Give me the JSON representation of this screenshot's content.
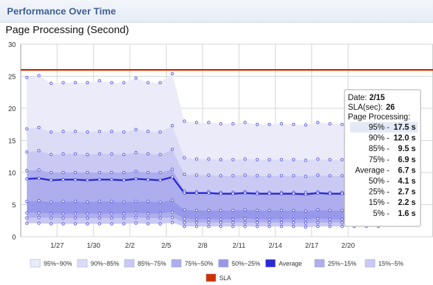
{
  "panel": {
    "title": "Performance Over Time"
  },
  "chart_data": {
    "type": "area",
    "title": "Page Processing (Second)",
    "xlabel": "",
    "ylabel": "",
    "ylim": [
      0,
      30
    ],
    "yticks": [
      0,
      5,
      10,
      15,
      20,
      25,
      30
    ],
    "xlim": [
      0,
      34
    ],
    "xticks": [
      {
        "x": 3,
        "label": "1/27"
      },
      {
        "x": 6,
        "label": "1/30"
      },
      {
        "x": 9,
        "label": "2/2"
      },
      {
        "x": 12,
        "label": "2/5"
      },
      {
        "x": 15,
        "label": "2/8"
      },
      {
        "x": 18,
        "label": "2/11"
      },
      {
        "x": 21,
        "label": "2/14"
      },
      {
        "x": 24,
        "label": "2/17"
      },
      {
        "x": 27,
        "label": "2/20"
      }
    ],
    "grid": true,
    "sla": {
      "name": "SLA",
      "value": 26,
      "color": "#cc3300"
    },
    "x": [
      0.5,
      1.5,
      2.5,
      3.5,
      4.5,
      5.5,
      6.5,
      7.5,
      8.5,
      9.5,
      10.5,
      11.5,
      12.5,
      13.5,
      14.5,
      15.5,
      16.5,
      17.5,
      18.5,
      19.5,
      20.5,
      21.5,
      22.5,
      23.5,
      24.5,
      25.5,
      26.5,
      27.5,
      28.5,
      29.5
    ],
    "series": [
      {
        "name": "95%",
        "values": [
          24.8,
          25.1,
          23.9,
          24.0,
          24.0,
          24.0,
          24.3,
          24.0,
          24.0,
          24.7,
          24.0,
          24.0,
          25.4,
          18.0,
          17.8,
          17.8,
          17.6,
          17.6,
          17.8,
          17.5,
          17.5,
          17.6,
          17.5,
          17.4,
          17.8,
          17.6,
          17.5,
          17.7,
          17.6,
          17.8
        ]
      },
      {
        "name": "90%",
        "values": [
          16.8,
          17.0,
          16.3,
          16.4,
          16.4,
          16.3,
          16.4,
          16.4,
          16.3,
          16.7,
          16.4,
          16.3,
          17.3,
          12.3,
          12.1,
          12.1,
          12.0,
          12.0,
          12.1,
          12.0,
          12.0,
          12.0,
          12.0,
          11.9,
          12.1,
          12.0,
          12.0,
          12.0,
          12.0,
          12.1
        ]
      },
      {
        "name": "85%",
        "values": [
          13.2,
          13.4,
          12.8,
          12.9,
          12.9,
          12.8,
          12.9,
          12.9,
          12.8,
          13.1,
          12.9,
          12.8,
          13.6,
          9.7,
          9.6,
          9.6,
          9.5,
          9.5,
          9.6,
          9.5,
          9.5,
          9.5,
          9.5,
          9.4,
          9.6,
          9.5,
          9.5,
          9.5,
          9.5,
          9.6
        ]
      },
      {
        "name": "75%",
        "values": [
          10.3,
          10.4,
          10.0,
          10.0,
          10.0,
          10.0,
          10.0,
          10.0,
          10.0,
          10.2,
          10.0,
          10.0,
          10.5,
          7.1,
          7.0,
          7.0,
          6.9,
          6.9,
          7.0,
          6.9,
          6.9,
          6.9,
          6.9,
          6.9,
          7.0,
          6.9,
          6.9,
          6.9,
          6.9,
          7.0
        ]
      },
      {
        "name": "Average",
        "values": [
          9.0,
          9.1,
          8.8,
          8.9,
          8.9,
          8.8,
          8.9,
          8.9,
          8.8,
          9.0,
          8.9,
          8.8,
          9.3,
          6.8,
          6.8,
          6.8,
          6.7,
          6.7,
          6.8,
          6.7,
          6.7,
          6.7,
          6.7,
          6.6,
          6.8,
          6.7,
          6.7,
          6.7,
          6.7,
          6.8
        ]
      },
      {
        "name": "50%",
        "values": [
          5.5,
          5.6,
          5.4,
          5.5,
          5.5,
          5.4,
          5.5,
          5.5,
          5.4,
          5.5,
          5.5,
          5.4,
          5.7,
          4.2,
          4.1,
          4.1,
          4.1,
          4.1,
          4.2,
          4.1,
          4.1,
          4.1,
          4.1,
          4.0,
          4.2,
          4.1,
          4.1,
          4.1,
          4.1,
          4.2
        ]
      },
      {
        "name": "25%",
        "values": [
          3.7,
          3.7,
          3.6,
          3.6,
          3.6,
          3.6,
          3.6,
          3.6,
          3.6,
          3.7,
          3.6,
          3.6,
          3.8,
          2.8,
          2.7,
          2.7,
          2.7,
          2.7,
          2.8,
          2.7,
          2.7,
          2.7,
          2.7,
          2.7,
          2.8,
          2.7,
          2.7,
          2.7,
          2.7,
          2.8
        ]
      },
      {
        "name": "15%",
        "values": [
          2.9,
          3.0,
          2.9,
          2.9,
          2.9,
          2.9,
          2.9,
          2.9,
          2.9,
          3.0,
          2.9,
          2.9,
          3.0,
          2.2,
          2.2,
          2.2,
          2.2,
          2.2,
          2.2,
          2.2,
          2.2,
          2.2,
          2.2,
          2.1,
          2.2,
          2.2,
          2.2,
          2.2,
          2.2,
          2.2
        ]
      },
      {
        "name": "5%",
        "values": [
          2.1,
          2.1,
          2.0,
          2.0,
          2.0,
          2.0,
          2.0,
          2.0,
          2.0,
          2.1,
          2.0,
          2.0,
          2.2,
          1.6,
          1.6,
          1.6,
          1.6,
          1.6,
          1.6,
          1.6,
          1.6,
          1.6,
          1.6,
          1.5,
          1.6,
          1.6,
          1.6,
          1.6,
          1.6,
          1.6
        ]
      }
    ],
    "bands": [
      {
        "name": "95%~90%",
        "upper": "95%",
        "lower": "90%",
        "color": "#ebebfa"
      },
      {
        "name": "90%~85%",
        "upper": "90%",
        "lower": "85%",
        "color": "#dcdcf7"
      },
      {
        "name": "85%~75%",
        "upper": "85%",
        "lower": "75%",
        "color": "#c9c9f3"
      },
      {
        "name": "75%~50%",
        "upper": "75%",
        "lower": "50%",
        "color": "#aeaeee"
      },
      {
        "name": "50%~25%",
        "upper": "50%",
        "lower": "25%",
        "color": "#9898ea"
      },
      {
        "name": "25%~15%",
        "upper": "25%",
        "lower": "15%",
        "color": "#aeaeee"
      },
      {
        "name": "15%~5%",
        "upper": "15%",
        "lower": "5%",
        "color": "#c9c9f3"
      }
    ],
    "average_color": "#2a2ad6",
    "point_color": "#5555dd",
    "legend": {
      "placement": "bottom",
      "items": [
        {
          "label": "95%~90%",
          "color": "#ebebfa"
        },
        {
          "label": "90%~85%",
          "color": "#dcdcf7"
        },
        {
          "label": "85%~75%",
          "color": "#c9c9f3"
        },
        {
          "label": "75%~50%",
          "color": "#aeaeee"
        },
        {
          "label": "50%~25%",
          "color": "#9898ea"
        },
        {
          "label": "Average",
          "color": "#2a2ad6"
        },
        {
          "label": "25%~15%",
          "color": "#aeaeee"
        },
        {
          "label": "15%~5%",
          "color": "#c9c9f3"
        },
        {
          "label": "SLA",
          "color": "#cc3300"
        }
      ]
    },
    "tooltip": {
      "date_label": "Date:",
      "date_value": "2/15",
      "sla_label": "SLA(sec):",
      "sla_value": "26",
      "heading": "Page Processing:",
      "highlight_row": 0,
      "rows": [
        {
          "label": "95% -",
          "value": "17.5 s"
        },
        {
          "label": "90% -",
          "value": "12.0 s"
        },
        {
          "label": "85% -",
          "value": "9.5 s"
        },
        {
          "label": "75% -",
          "value": "6.9 s"
        },
        {
          "label": "Average -",
          "value": "6.7 s"
        },
        {
          "label": "50% -",
          "value": "4.1 s"
        },
        {
          "label": "25% -",
          "value": "2.7 s"
        },
        {
          "label": "15% -",
          "value": "2.2 s"
        },
        {
          "label": "5% -",
          "value": "1.6 s"
        }
      ]
    }
  }
}
